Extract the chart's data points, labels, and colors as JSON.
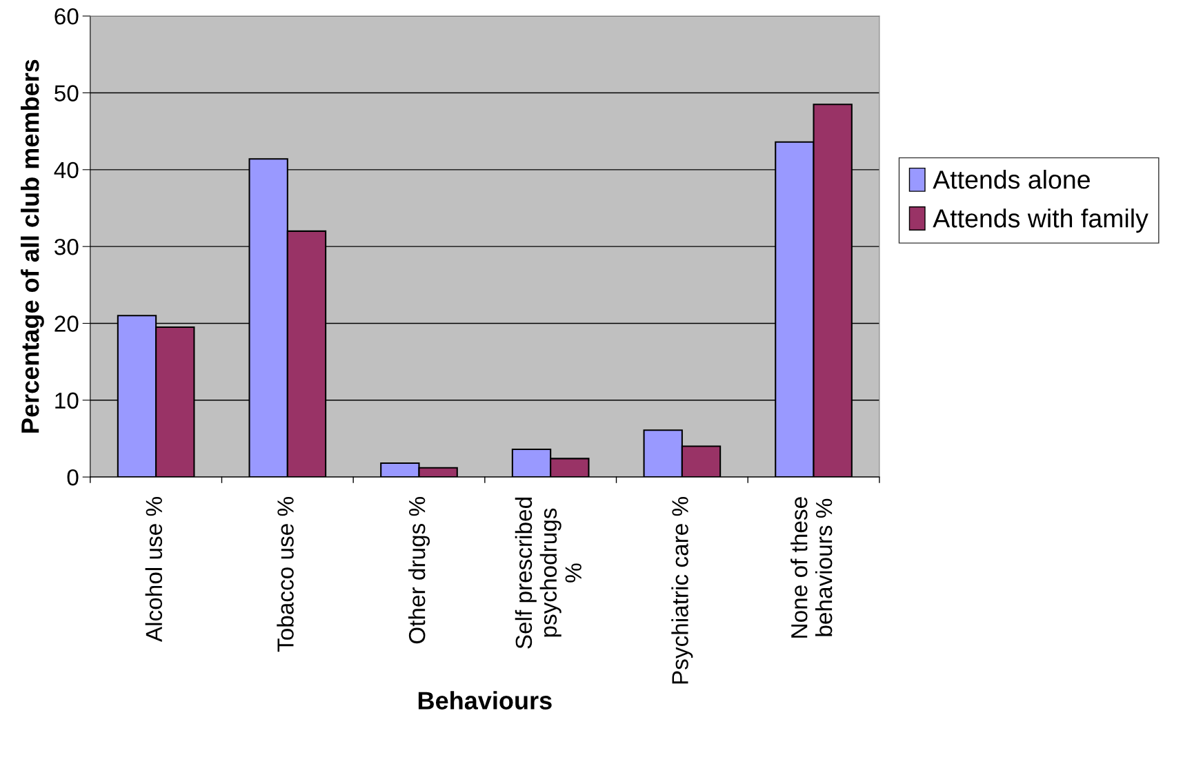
{
  "chart_data": {
    "type": "bar",
    "xlabel": "Behaviours",
    "ylabel": "Percentage of all club members",
    "categories": [
      "Alcohol use %",
      "Tobacco use %",
      "Other drugs %",
      "Self prescribed\npsychodrugs\n%",
      "Psychiatric care %",
      "None of these\nbehaviours %"
    ],
    "series": [
      {
        "name": "Attends alone",
        "color": "#9999ff",
        "values": [
          21.0,
          41.4,
          1.8,
          3.6,
          6.1,
          43.6
        ]
      },
      {
        "name": "Attends with family",
        "color": "#993366",
        "values": [
          19.5,
          32.0,
          1.2,
          2.4,
          4.0,
          48.5
        ]
      }
    ],
    "ylim": [
      0,
      60
    ],
    "yticks": [
      0,
      10,
      20,
      30,
      40,
      50,
      60
    ],
    "grid": "y",
    "legend": "right"
  }
}
